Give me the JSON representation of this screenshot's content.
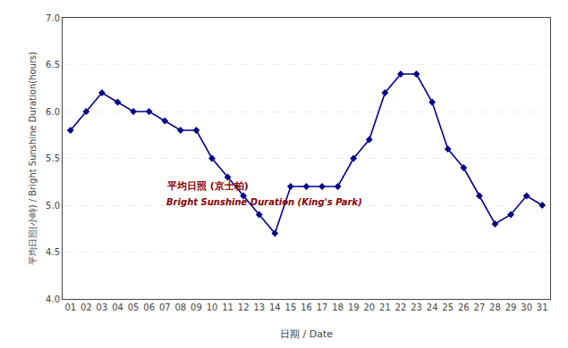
{
  "chart_data": {
    "type": "line",
    "x_label": "日期 / Date",
    "y_label": "平均日照(小時) / Bright Sunshine Duration(hours)",
    "x": [
      1,
      2,
      3,
      4,
      5,
      6,
      7,
      8,
      9,
      10,
      11,
      12,
      13,
      14,
      15,
      16,
      17,
      18,
      19,
      20,
      21,
      22,
      23,
      24,
      25,
      26,
      27,
      28,
      29,
      30,
      31
    ],
    "series": [
      {
        "color": "#00008B",
        "marker": "diamond",
        "line_style": "solid",
        "values": [
          5.8,
          6.0,
          6.2,
          6.1,
          6.0,
          6.0,
          5.9,
          5.8,
          5.8,
          5.5,
          5.3,
          5.1,
          4.9,
          4.7,
          5.2,
          5.2,
          5.2,
          5.2,
          5.5,
          5.7,
          6.2,
          6.4,
          6.4,
          6.1,
          5.6,
          5.4,
          5.1,
          4.8,
          4.9,
          5.1,
          5.0
        ]
      }
    ],
    "xlim": [
      0.5,
      31.5
    ],
    "xticks": [
      {
        "value": 1,
        "label": "01"
      },
      {
        "value": 2,
        "label": "02"
      },
      {
        "value": 3,
        "label": "03"
      },
      {
        "value": 4,
        "label": "04"
      },
      {
        "value": 5,
        "label": "05"
      },
      {
        "value": 6,
        "label": "06"
      },
      {
        "value": 7,
        "label": "07"
      },
      {
        "value": 8,
        "label": "08"
      },
      {
        "value": 9,
        "label": "09"
      },
      10,
      11,
      12,
      13,
      14,
      15,
      16,
      17,
      18,
      19,
      20,
      21,
      22,
      23,
      24,
      25,
      26,
      27,
      28,
      29,
      30,
      31
    ],
    "ylim": [
      4.0,
      7.0
    ],
    "yticks": [
      {
        "value": 4.0,
        "label": "4.0"
      },
      4.5,
      {
        "value": 5.0,
        "label": "5.0"
      },
      5.5,
      {
        "value": 6.0,
        "label": "6.0"
      },
      6.5,
      {
        "value": 7.0,
        "label": "7.0"
      }
    ],
    "grid": true,
    "annotations": [
      {
        "text": "平均日照 (京士柏)",
        "x": 7.0,
        "y": 5.12,
        "color": "#8B0000"
      },
      {
        "text": "Bright Sunshine Duration (King's Park)",
        "x": 7.0,
        "y": 4.96,
        "color": "#8B0000"
      }
    ]
  }
}
